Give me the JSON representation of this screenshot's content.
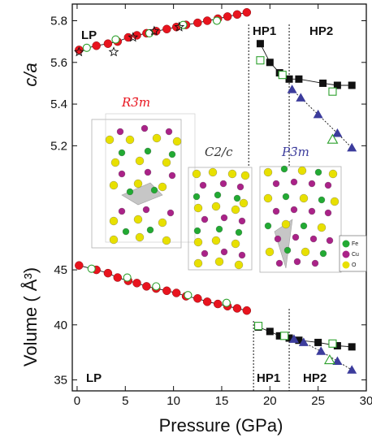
{
  "chart_data": [
    {
      "type": "scatter",
      "panel": "top",
      "ylabel": "c/a",
      "ylim": [
        5.1,
        5.88
      ],
      "yticks": [
        "5.2",
        "5.4",
        "5.6",
        "5.8"
      ],
      "xlim": [
        -0.5,
        30
      ],
      "regions": [
        "LP",
        "HP1",
        "HP2"
      ],
      "boundaries": [
        17.8,
        22
      ],
      "series": [
        {
          "marker": "circle-filled",
          "color": "#e8141e",
          "x": [
            0.2,
            2.0,
            3.2,
            4.2,
            5.3,
            6.2,
            7.2,
            8.2,
            9.3,
            10.3,
            11.3,
            12.5,
            13.5,
            14.6,
            15.6,
            16.6,
            17.6
          ],
          "y": [
            5.66,
            5.68,
            5.69,
            5.7,
            5.72,
            5.73,
            5.74,
            5.75,
            5.76,
            5.77,
            5.78,
            5.79,
            5.8,
            5.81,
            5.82,
            5.83,
            5.84
          ]
        },
        {
          "marker": "circle-open",
          "color": "#2ca02c",
          "x": [
            1.0,
            4.0,
            7.5,
            11.0,
            14.5
          ],
          "y": [
            5.67,
            5.71,
            5.74,
            5.78,
            5.8
          ]
        },
        {
          "marker": "star-open",
          "color": "#111111",
          "x": [
            0.2,
            3.8,
            5.8,
            8.0,
            10.6
          ],
          "y": [
            5.65,
            5.65,
            5.72,
            5.75,
            5.77
          ]
        },
        {
          "marker": "square-filled",
          "color": "#111111",
          "x": [
            19.0,
            20.0,
            21.0,
            22.0,
            23.0,
            25.5,
            27.0,
            28.5
          ],
          "y": [
            5.69,
            5.6,
            5.55,
            5.52,
            5.52,
            5.5,
            5.49,
            5.49
          ]
        },
        {
          "marker": "square-open",
          "color": "#2ca02c",
          "x": [
            19.0,
            21.3,
            26.5
          ],
          "y": [
            5.61,
            5.54,
            5.46
          ]
        },
        {
          "marker": "triangle-filled",
          "color": "#3c3c9c",
          "x": [
            22.3,
            23.2,
            25.0,
            27.0,
            28.5
          ],
          "y": [
            5.47,
            5.43,
            5.35,
            5.26,
            5.19
          ]
        },
        {
          "marker": "triangle-open",
          "color": "#2ca02c",
          "x": [
            26.5
          ],
          "y": [
            5.23
          ]
        }
      ]
    },
    {
      "type": "scatter",
      "panel": "bottom",
      "ylabel": "Volume ( Å³)",
      "ylim": [
        34,
        47
      ],
      "yticks": [
        "35",
        "40",
        "45"
      ],
      "xlabel": "Pressure (GPa)",
      "xlim": [
        -0.5,
        30
      ],
      "xticks": [
        "0",
        "5",
        "10",
        "15",
        "20",
        "25",
        "30"
      ],
      "regions": [
        "LP",
        "HP1",
        "HP2"
      ],
      "boundaries": [
        18.3,
        22
      ],
      "series": [
        {
          "marker": "circle-filled",
          "color": "#e8141e",
          "x": [
            0.2,
            2.0,
            3.2,
            4.2,
            5.3,
            6.2,
            7.2,
            8.2,
            9.3,
            10.3,
            11.3,
            12.5,
            13.5,
            14.6,
            15.6,
            16.6,
            17.6
          ],
          "y": [
            45.4,
            45.0,
            44.7,
            44.3,
            44.0,
            43.8,
            43.5,
            43.3,
            43.1,
            42.9,
            42.6,
            42.4,
            42.1,
            41.9,
            41.7,
            41.5,
            41.3
          ]
        },
        {
          "marker": "circle-open",
          "color": "#2ca02c",
          "x": [
            1.5,
            5.2,
            8.2,
            11.5,
            15.5
          ],
          "y": [
            45.1,
            44.3,
            43.5,
            42.7,
            42.0
          ]
        },
        {
          "marker": "square-filled",
          "color": "#111111",
          "x": [
            18.8,
            20.0,
            21.0,
            22.0,
            23.0,
            25.0,
            27.0,
            28.5
          ],
          "y": [
            39.8,
            39.4,
            39.0,
            38.8,
            38.6,
            38.4,
            38.1,
            38.0
          ]
        },
        {
          "marker": "square-open",
          "color": "#2ca02c",
          "x": [
            18.8,
            21.5,
            26.5
          ],
          "y": [
            39.9,
            39.0,
            38.3
          ]
        },
        {
          "marker": "triangle-filled",
          "color": "#3c3c9c",
          "x": [
            22.5,
            23.5,
            25.3,
            27.0,
            28.5
          ],
          "y": [
            38.7,
            38.4,
            37.6,
            36.7,
            35.9
          ]
        },
        {
          "marker": "triangle-open",
          "color": "#2ca02c",
          "x": [
            26.2
          ],
          "y": [
            36.8
          ]
        }
      ]
    }
  ],
  "insets": {
    "structures": [
      "R3̄m",
      "C2/c",
      "P3̄m"
    ],
    "legend": [
      {
        "label": "Fe",
        "color": "#22aa33"
      },
      {
        "label": "Cu",
        "color": "#aa2288"
      },
      {
        "label": "O",
        "color": "#e8e000"
      }
    ]
  }
}
